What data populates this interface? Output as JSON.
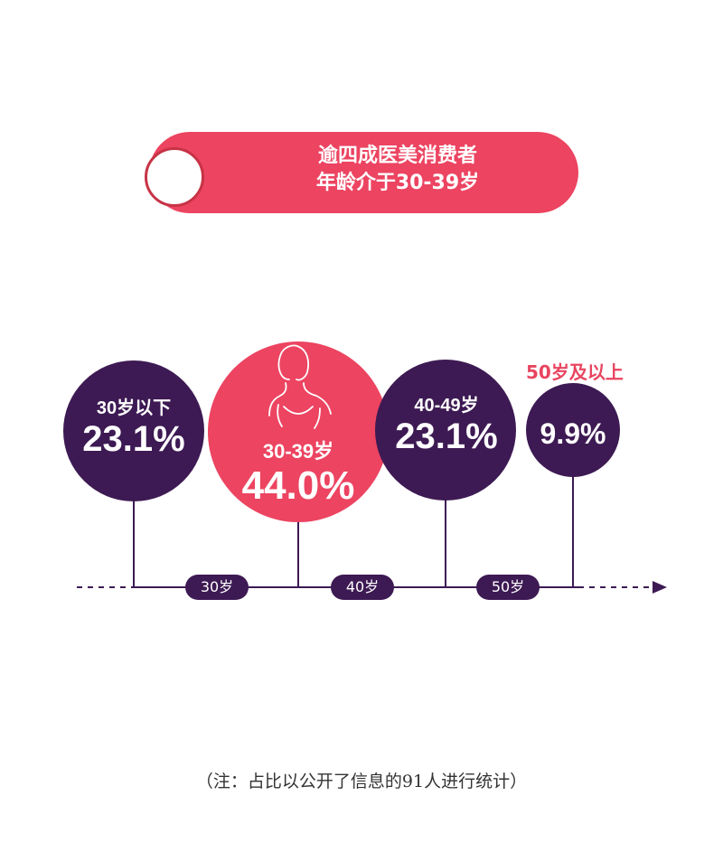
{
  "banner": {
    "line1": "逾四成医美消费者",
    "line2": "年龄介于30-39岁"
  },
  "chart_data": {
    "type": "bubble",
    "title": "逾四成医美消费者年龄介于30-39岁",
    "categories": [
      "30岁以下",
      "30-39岁",
      "40-49岁",
      "50岁及以上"
    ],
    "values": [
      23.1,
      44.0,
      23.1,
      9.9
    ],
    "value_labels": [
      "23.1%",
      "44.0%",
      "23.1%",
      "9.9%"
    ],
    "axis_ticks": [
      "30岁",
      "40岁",
      "50岁"
    ],
    "colors": {
      "primary": "#3d1a53",
      "highlight": "#ec4461",
      "highlight_index": 1
    }
  },
  "note": "（注：占比以公开了信息的91人进行统计）"
}
